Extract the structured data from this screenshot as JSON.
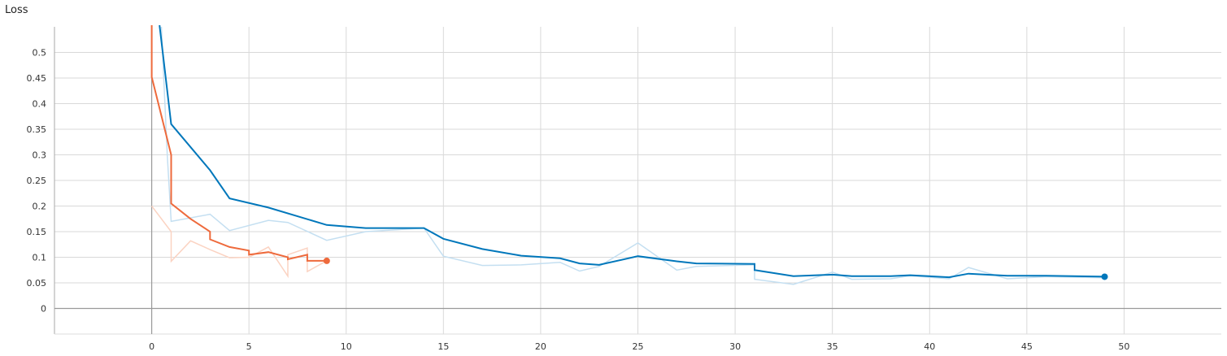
{
  "chart_data": {
    "type": "line",
    "title": "Loss",
    "xlabel": "",
    "ylabel": "",
    "xlim": [
      -5,
      55
    ],
    "ylim": [
      -0.05,
      0.55
    ],
    "x_ticks": [
      "0",
      "5",
      "10",
      "15",
      "20",
      "25",
      "30",
      "35",
      "40",
      "45",
      "50"
    ],
    "y_ticks": [
      "0",
      "0.05",
      "0.1",
      "0.15",
      "0.2",
      "0.25",
      "0.3",
      "0.35",
      "0.4",
      "0.45",
      "0.5"
    ],
    "grid": true,
    "series": [
      {
        "color": "#0077bb",
        "raw_color": "#c4dff1",
        "smoothed": [
          [
            0.4,
            0.56
          ],
          [
            1,
            0.36
          ],
          [
            3,
            0.27
          ],
          [
            4,
            0.215
          ],
          [
            6,
            0.197
          ],
          [
            9,
            0.163
          ],
          [
            11,
            0.157
          ],
          [
            14,
            0.157
          ],
          [
            15,
            0.136
          ],
          [
            17,
            0.116
          ],
          [
            19,
            0.103
          ],
          [
            21,
            0.098
          ],
          [
            22,
            0.088
          ],
          [
            23,
            0.085
          ],
          [
            25,
            0.102
          ],
          [
            27,
            0.092
          ],
          [
            28,
            0.088
          ],
          [
            31,
            0.087
          ],
          [
            31,
            0.075
          ],
          [
            33,
            0.063
          ],
          [
            35,
            0.066
          ],
          [
            36,
            0.063
          ],
          [
            38,
            0.063
          ],
          [
            39,
            0.065
          ],
          [
            41,
            0.061
          ],
          [
            42,
            0.068
          ],
          [
            44,
            0.064
          ],
          [
            46,
            0.064
          ],
          [
            49,
            0.062
          ]
        ],
        "raw": [
          [
            0.5,
            0.55
          ],
          [
            0.8,
            0.3
          ],
          [
            1,
            0.17
          ],
          [
            3,
            0.184
          ],
          [
            4,
            0.152
          ],
          [
            6,
            0.172
          ],
          [
            7,
            0.168
          ],
          [
            9,
            0.133
          ],
          [
            11,
            0.15
          ],
          [
            14,
            0.157
          ],
          [
            15,
            0.102
          ],
          [
            17,
            0.084
          ],
          [
            19,
            0.085
          ],
          [
            21,
            0.09
          ],
          [
            22,
            0.073
          ],
          [
            23,
            0.082
          ],
          [
            25,
            0.128
          ],
          [
            27,
            0.075
          ],
          [
            28,
            0.082
          ],
          [
            31,
            0.085
          ],
          [
            31,
            0.057
          ],
          [
            33,
            0.047
          ],
          [
            35,
            0.071
          ],
          [
            36,
            0.057
          ],
          [
            38,
            0.058
          ],
          [
            39,
            0.064
          ],
          [
            41,
            0.058
          ],
          [
            42,
            0.08
          ],
          [
            44,
            0.058
          ],
          [
            46,
            0.062
          ],
          [
            49,
            0.06
          ]
        ]
      },
      {
        "color": "#ee6a3c",
        "raw_color": "#fbd3c2",
        "smoothed": [
          [
            0,
            0.56
          ],
          [
            0,
            0.452
          ],
          [
            1,
            0.3
          ],
          [
            1,
            0.205
          ],
          [
            2,
            0.175
          ],
          [
            3,
            0.15
          ],
          [
            3,
            0.135
          ],
          [
            4,
            0.12
          ],
          [
            5,
            0.113
          ],
          [
            5,
            0.105
          ],
          [
            6,
            0.11
          ],
          [
            7,
            0.1
          ],
          [
            7,
            0.096
          ],
          [
            8,
            0.105
          ],
          [
            8,
            0.093
          ],
          [
            9,
            0.093
          ]
        ],
        "raw": [
          [
            0,
            0.2
          ],
          [
            1,
            0.15
          ],
          [
            1,
            0.092
          ],
          [
            2,
            0.132
          ],
          [
            3,
            0.115
          ],
          [
            4,
            0.099
          ],
          [
            5,
            0.1
          ],
          [
            6,
            0.12
          ],
          [
            7,
            0.063
          ],
          [
            7,
            0.105
          ],
          [
            8,
            0.118
          ],
          [
            8,
            0.072
          ],
          [
            9,
            0.093
          ]
        ]
      }
    ]
  }
}
